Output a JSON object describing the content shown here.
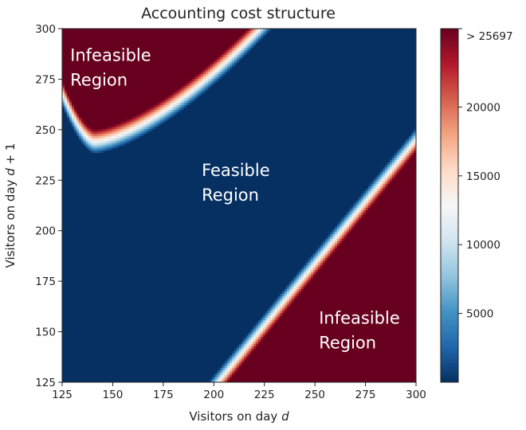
{
  "chart_data": {
    "type": "heatmap",
    "title": "Accounting cost structure",
    "xlabel": {
      "prefix": "Visitors on day ",
      "var": "d",
      "suffix": ""
    },
    "ylabel": {
      "prefix": "Visitors on day ",
      "var": "d",
      "suffix": " + 1"
    },
    "xlim": [
      125,
      300
    ],
    "ylim": [
      125,
      300
    ],
    "x_ticks": [
      "125",
      "150",
      "175",
      "200",
      "225",
      "250",
      "275",
      "300"
    ],
    "y_ticks": [
      "125",
      "150",
      "175",
      "200",
      "225",
      "250",
      "275",
      "300"
    ],
    "colorbar": {
      "colormap": "RdBu_r",
      "range": [
        0,
        25697
      ],
      "ticks": [
        "5000",
        "10000",
        "15000",
        "20000"
      ],
      "max_label": "> 25697"
    },
    "annotations": [
      {
        "name": "upper-infeasible",
        "lines": [
          "Infeasible",
          "Region"
        ],
        "x": 129,
        "y": 284
      },
      {
        "name": "feasible",
        "lines": [
          "Feasible",
          "Region"
        ],
        "x": 194,
        "y": 227
      },
      {
        "name": "lower-infeasible",
        "lines": [
          "Infeasible",
          "Region"
        ],
        "x": 252,
        "y": 154
      }
    ]
  }
}
